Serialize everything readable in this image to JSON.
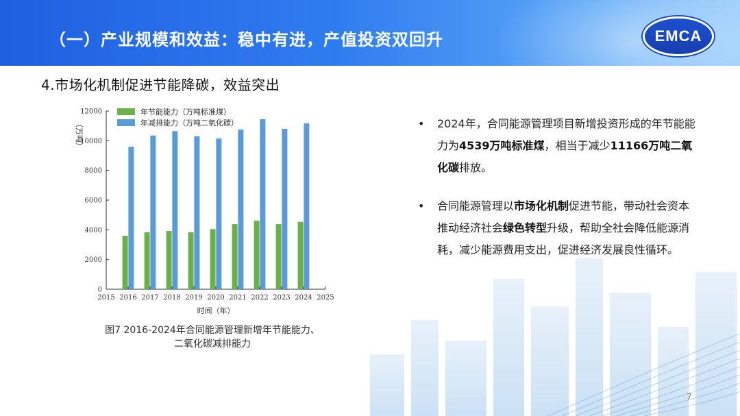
{
  "header": {
    "title": "（一）产业规模和效益：稳中有进，产值投资双回升",
    "logo_text": "EMCA"
  },
  "subtitle": "4.市场化机制促进节能降碳，效益突出",
  "chart_data": {
    "type": "bar",
    "categories": [
      "2016",
      "2017",
      "2018",
      "2019",
      "2020",
      "2021",
      "2022",
      "2023",
      "2024"
    ],
    "series": [
      {
        "name": "年节能能力（万吨标准煤）",
        "color": "#6ab04c",
        "values": [
          3600,
          3830,
          3920,
          3830,
          4050,
          4380,
          4620,
          4380,
          4539
        ]
      },
      {
        "name": "年减排能力（万吨二氧化碳）",
        "color": "#5b9bd5",
        "values": [
          9600,
          10350,
          10650,
          10300,
          10150,
          10750,
          11450,
          10800,
          11166
        ]
      }
    ],
    "x_ticks": [
      "2015",
      "2016",
      "2017",
      "2018",
      "2019",
      "2020",
      "2021",
      "2022",
      "2023",
      "2024",
      "2025"
    ],
    "x_range": [
      2015,
      2025
    ],
    "y_ticks": [
      "0",
      "2000",
      "4000",
      "6000",
      "8000",
      "10000",
      "12000"
    ],
    "ylim": [
      0,
      12000
    ],
    "xlabel": "时间（年）",
    "ylabel": "（万吨）",
    "legend_position": "top-left",
    "grid": false
  },
  "caption": {
    "line1": "图7  2016-2024年合同能源管理新增年节能能力、",
    "line2": "二氧化碳减排能力"
  },
  "bullets": [
    {
      "parts": [
        {
          "t": "2024年，合同能源管理项目新增投资形成的年节能能力为",
          "b": false
        },
        {
          "t": "4539万吨标准煤",
          "b": true
        },
        {
          "t": "，相当于减少",
          "b": false
        },
        {
          "t": "11166万吨二氧化碳",
          "b": true
        },
        {
          "t": "排放。",
          "b": false
        }
      ]
    },
    {
      "parts": [
        {
          "t": "合同能源管理以",
          "b": false
        },
        {
          "t": "市场化机制",
          "b": true
        },
        {
          "t": "促进节能，带动社会资本推动经济社会",
          "b": false
        },
        {
          "t": "绿色转型",
          "b": true
        },
        {
          "t": "升级，帮助全社会降低能源消耗，减少能源费用支出，促进经济发展良性循环。",
          "b": false
        }
      ]
    }
  ],
  "bullet_symbol": "•",
  "page_number": "7"
}
